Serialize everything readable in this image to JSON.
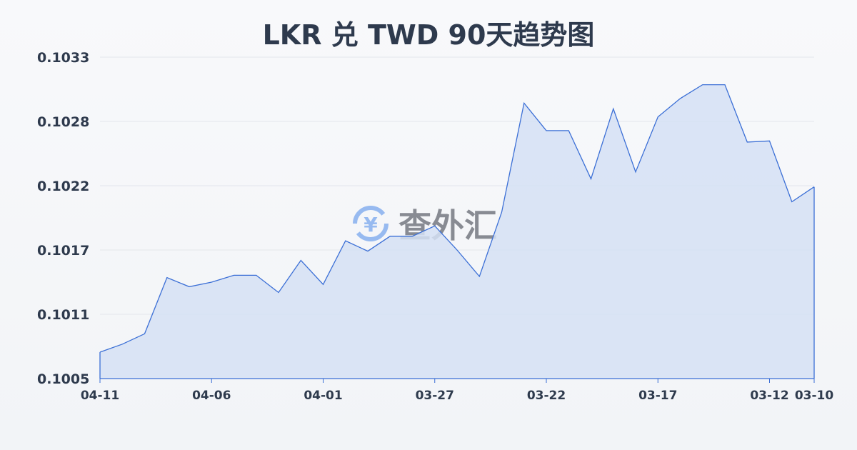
{
  "chart_data": {
    "type": "area",
    "title": "LKR 兑 TWD 90天趋势图",
    "xlabel": "",
    "ylabel": "",
    "x": [
      "04-11",
      "04-10",
      "04-09",
      "04-08",
      "04-07",
      "04-06",
      "04-05",
      "04-04",
      "04-03",
      "04-02",
      "04-01",
      "03-31",
      "03-30",
      "03-29",
      "03-28",
      "03-27",
      "03-26",
      "03-25",
      "03-24",
      "03-23",
      "03-22",
      "03-21",
      "03-20",
      "03-19",
      "03-18",
      "03-17",
      "03-16",
      "03-15",
      "03-14",
      "03-13",
      "03-12",
      "03-11",
      "03-10"
    ],
    "values": [
      0.10073,
      0.1008,
      0.10089,
      0.10138,
      0.1013,
      0.10134,
      0.1014,
      0.1014,
      0.10125,
      0.10153,
      0.10132,
      0.1017,
      0.10161,
      0.10174,
      0.10174,
      0.10183,
      0.10162,
      0.10139,
      0.10195,
      0.1029,
      0.10266,
      0.10266,
      0.10224,
      0.10285,
      0.1023,
      0.10278,
      0.10294,
      0.10306,
      0.10306,
      0.10256,
      0.10257,
      0.10204,
      0.10217
    ],
    "ylim": [
      0.1005,
      0.1033
    ],
    "y_ticks": [
      "0.1005",
      "0.1011",
      "0.1017",
      "0.1022",
      "0.1028",
      "0.1033"
    ],
    "x_ticks": [
      "04-11",
      "04-06",
      "04-01",
      "03-27",
      "03-22",
      "03-17",
      "03-12",
      "03-10"
    ],
    "grid": "horizontal",
    "colors": {
      "line": "#3b6fd6",
      "fill": "#d5e1f5",
      "grid": "#e3e6ec",
      "text": "#2e3a4d"
    }
  },
  "watermark": {
    "text": "查外汇",
    "icon": "yen-exchange-icon"
  }
}
